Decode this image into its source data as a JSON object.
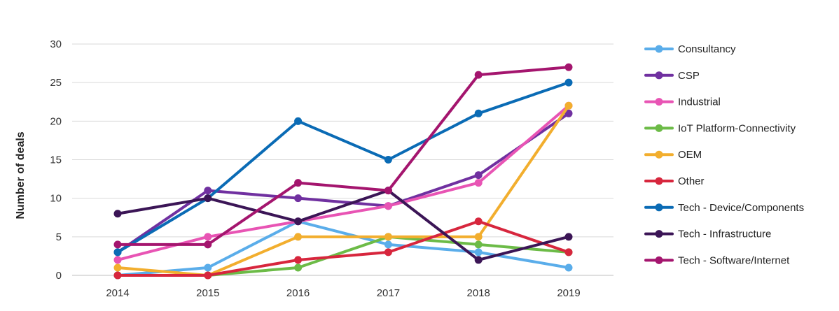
{
  "chart_data": {
    "type": "line",
    "title": "",
    "xlabel": "",
    "ylabel": "Number of deals",
    "categories": [
      "2014",
      "2015",
      "2016",
      "2017",
      "2018",
      "2019"
    ],
    "ylim": [
      0,
      30
    ],
    "yticks": [
      0,
      5,
      10,
      15,
      20,
      25,
      30
    ],
    "grid": "horizontal",
    "legend_position": "right",
    "series": [
      {
        "name": "Consultancy",
        "color": "#5AADEA",
        "values": [
          0,
          1,
          7,
          4,
          3,
          1
        ]
      },
      {
        "name": "CSP",
        "color": "#7030A0",
        "values": [
          3,
          11,
          10,
          9,
          13,
          21
        ]
      },
      {
        "name": "Industrial",
        "color": "#E854B4",
        "values": [
          2,
          5,
          7,
          9,
          12,
          22
        ]
      },
      {
        "name": "IoT Platform-Connectivity",
        "color": "#6CBB47",
        "values": [
          0,
          0,
          1,
          5,
          4,
          3
        ]
      },
      {
        "name": "OEM",
        "color": "#F2AE2E",
        "values": [
          1,
          0,
          5,
          5,
          5,
          22
        ]
      },
      {
        "name": "Other",
        "color": "#D7263D",
        "values": [
          0,
          0,
          2,
          3,
          7,
          3
        ]
      },
      {
        "name": "Tech - Device/Components",
        "color": "#0A6BB5",
        "values": [
          3,
          10,
          20,
          15,
          21,
          25
        ]
      },
      {
        "name": "Tech - Infrastructure",
        "color": "#3B1556",
        "values": [
          8,
          10,
          7,
          11,
          2,
          5
        ]
      },
      {
        "name": "Tech - Software/Internet",
        "color": "#A4156E",
        "values": [
          4,
          4,
          12,
          11,
          26,
          27
        ]
      }
    ]
  }
}
